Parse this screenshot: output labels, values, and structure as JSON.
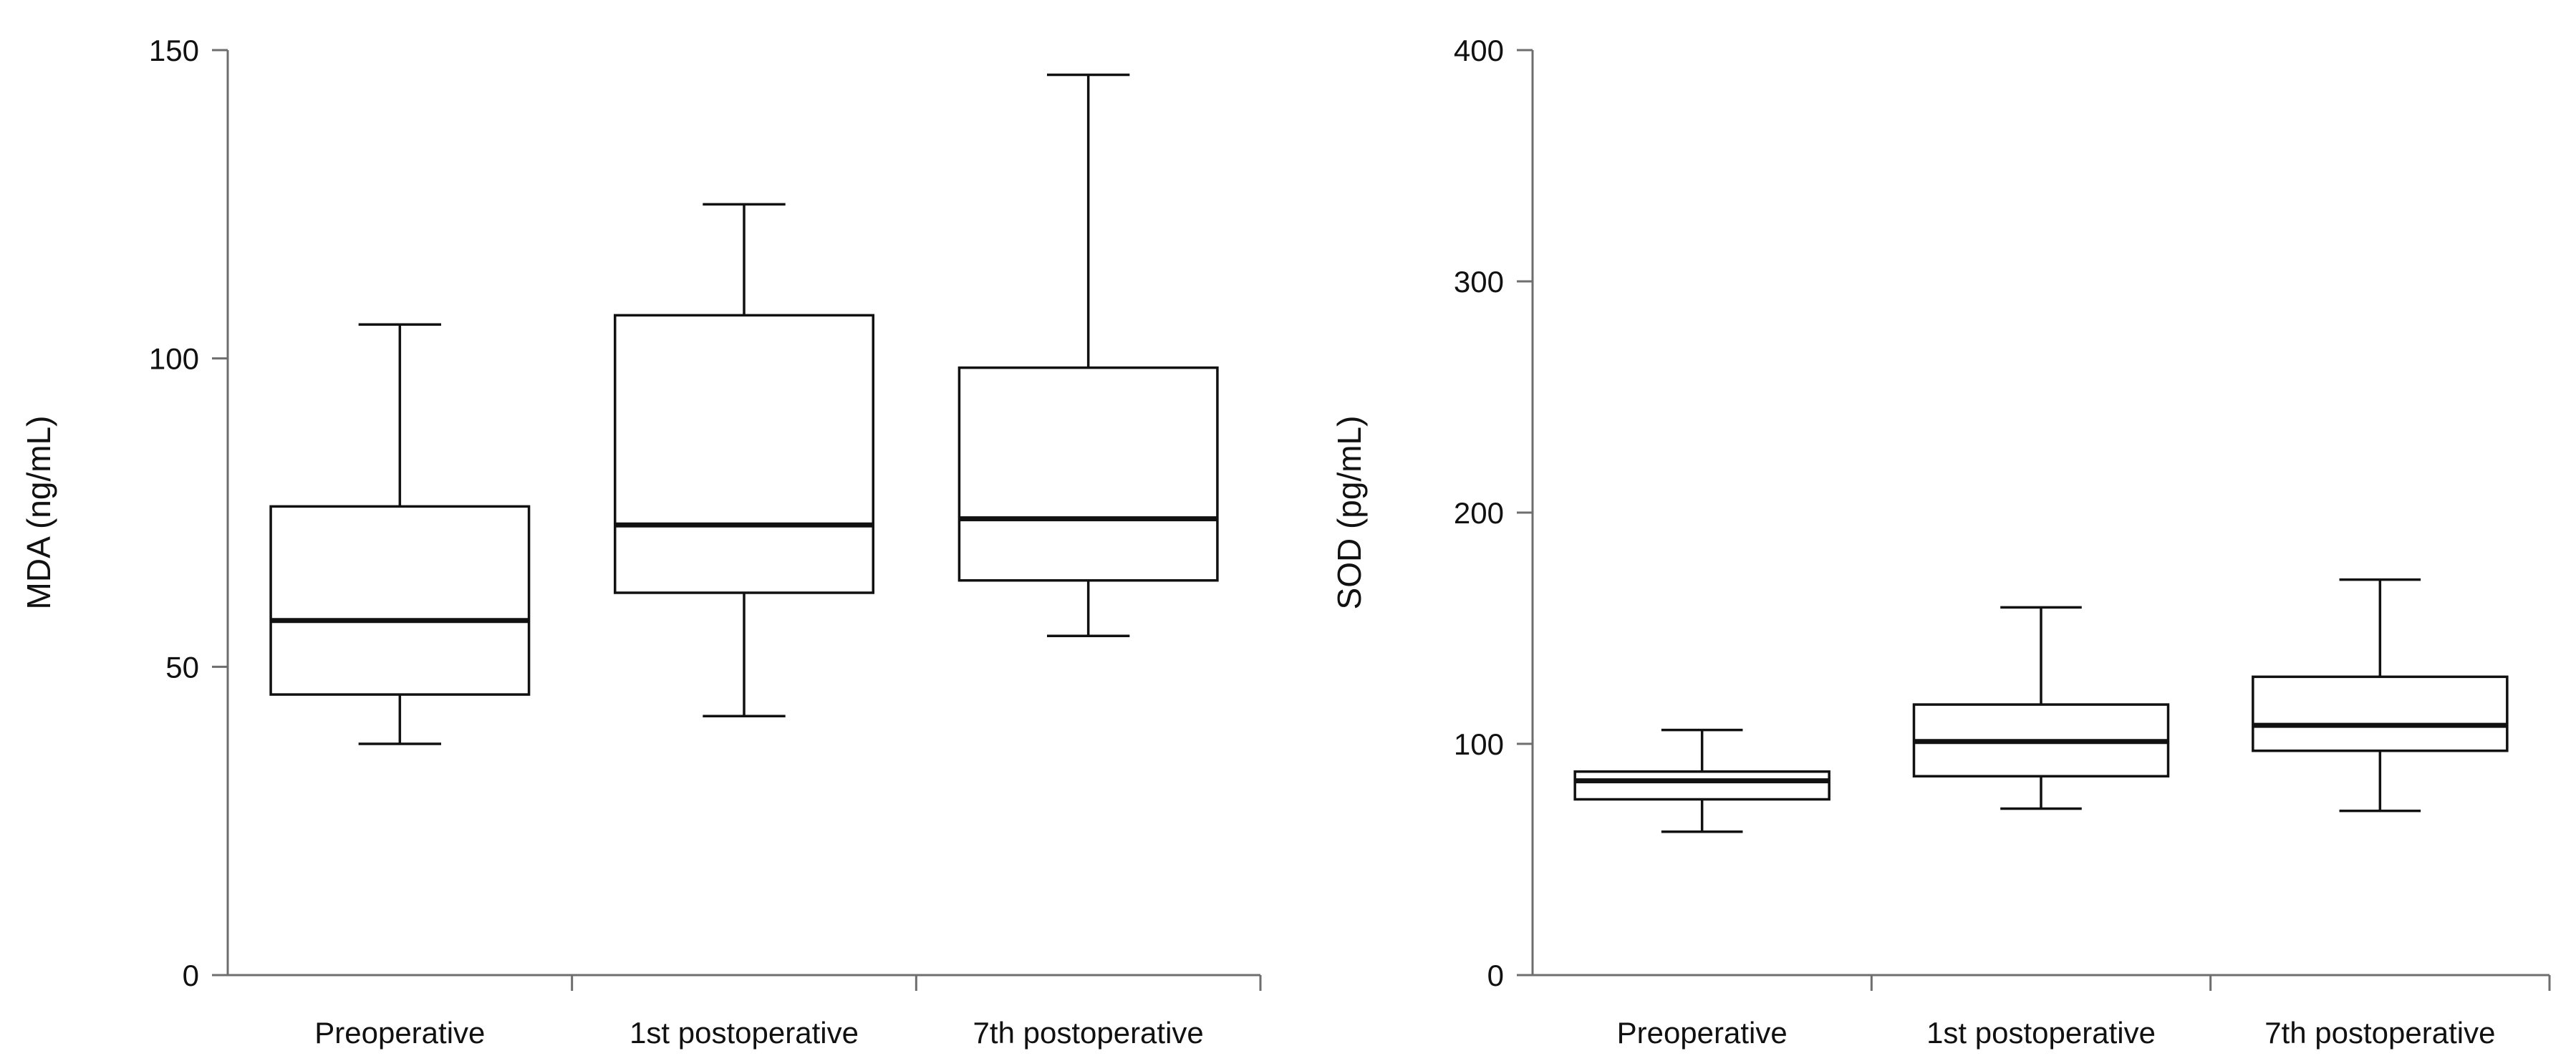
{
  "chart_data": [
    {
      "type": "box",
      "title": "",
      "xlabel": "",
      "ylabel": "MDA (ng/mL)",
      "ylim": [
        0,
        150
      ],
      "yticks": [
        0,
        50,
        100,
        150
      ],
      "categories": [
        "Preoperative",
        "1st postoperative",
        "7th postoperative"
      ],
      "boxes": [
        {
          "min": 37.5,
          "q1": 45.5,
          "median": 57.5,
          "q3": 76,
          "max": 105.5
        },
        {
          "min": 42,
          "q1": 62,
          "median": 73,
          "q3": 107,
          "max": 125
        },
        {
          "min": 55,
          "q1": 64,
          "median": 74,
          "q3": 98.5,
          "max": 146
        }
      ],
      "grid": false
    },
    {
      "type": "box",
      "title": "",
      "xlabel": "",
      "ylabel": "SOD (pg/mL)",
      "ylim": [
        0,
        400
      ],
      "yticks": [
        0,
        100,
        200,
        300,
        400
      ],
      "categories": [
        "Preoperative",
        "1st postoperative",
        "7th postoperative"
      ],
      "boxes": [
        {
          "min": 62,
          "q1": 76,
          "median": 84,
          "q3": 88,
          "max": 106
        },
        {
          "min": 72,
          "q1": 86,
          "median": 101,
          "q3": 117,
          "max": 159
        },
        {
          "min": 71,
          "q1": 97,
          "median": 108,
          "q3": 129,
          "max": 171
        }
      ],
      "grid": false
    }
  ]
}
